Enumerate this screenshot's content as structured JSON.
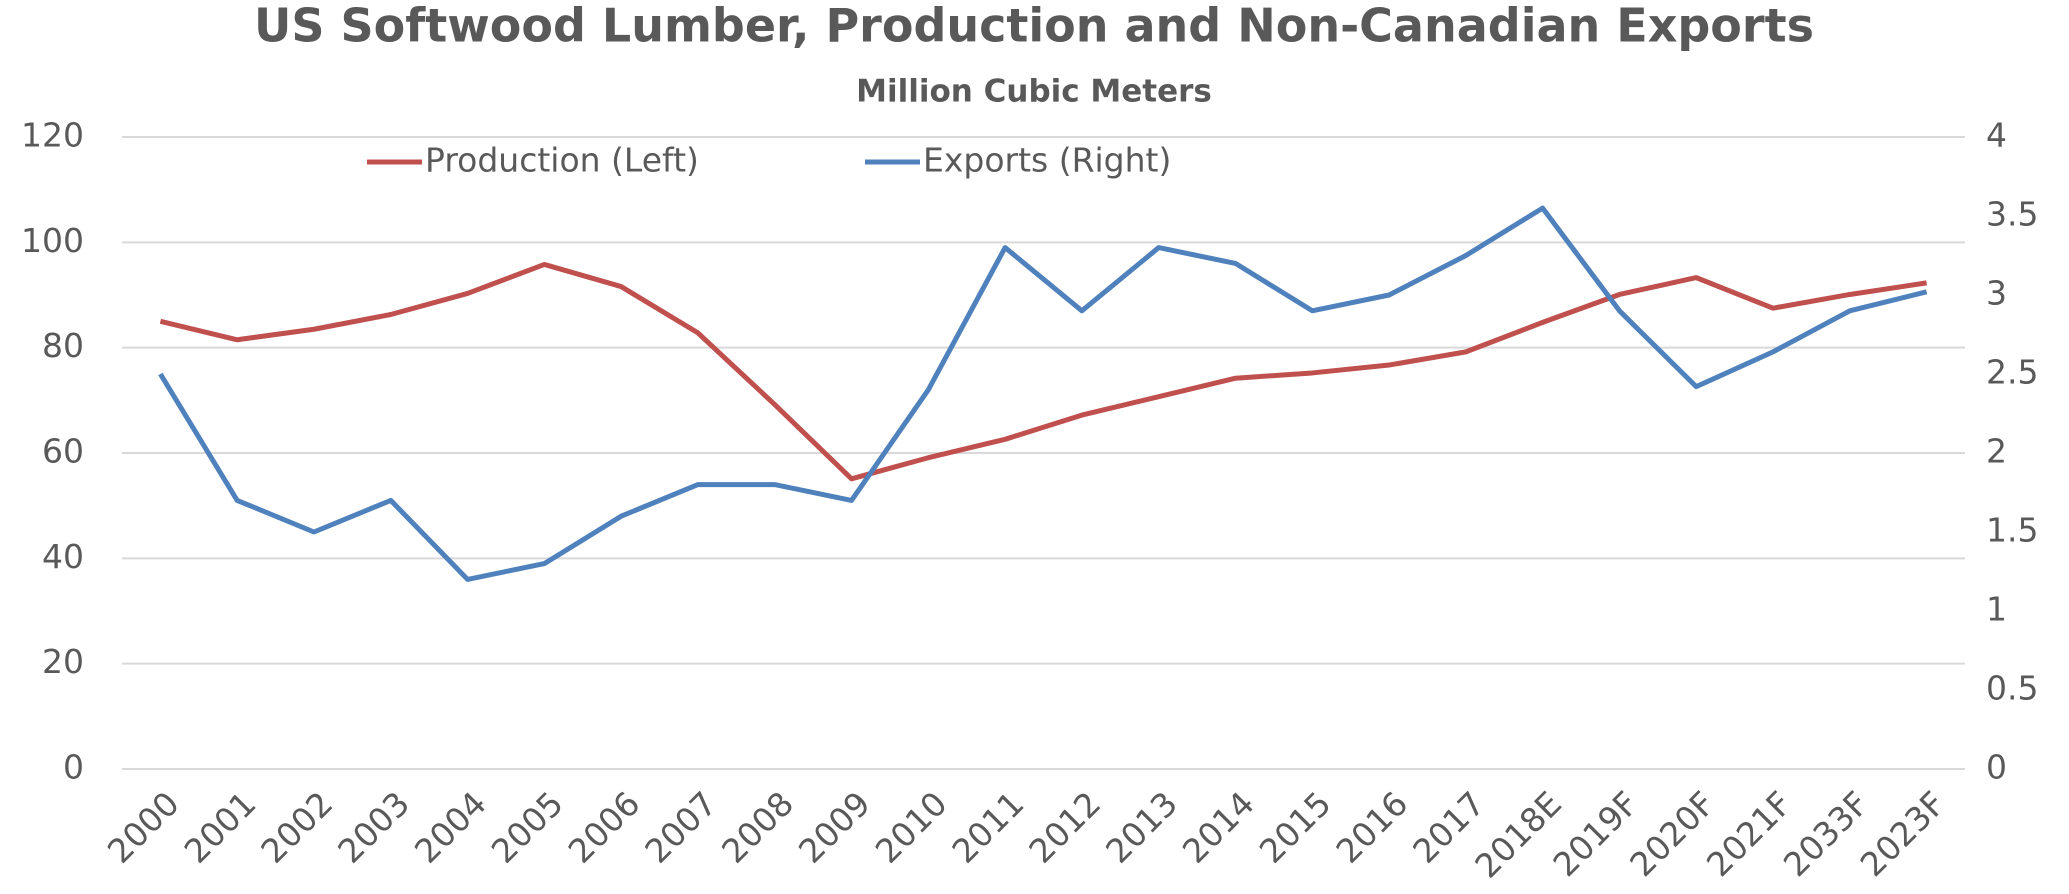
{
  "chart_data": {
    "type": "line",
    "title": "US Softwood Lumber, Production and Non-Canadian Exports",
    "subtitle": "Million Cubic Meters",
    "categories": [
      "2000",
      "2001",
      "2002",
      "2003",
      "2004",
      "2005",
      "2006",
      "2007",
      "2008",
      "2009",
      "2010",
      "2011",
      "2012",
      "2013",
      "2014",
      "2015",
      "2016",
      "2017",
      "2018E",
      "2019F",
      "2020F",
      "2021F",
      "2033F",
      "2023F"
    ],
    "series": [
      {
        "name": "Production (Left)",
        "color": "#c0504d",
        "values": [
          85,
          81.5,
          83.5,
          86.3,
          90.3,
          95.8,
          91.6,
          82.8,
          69.2,
          55.1,
          59.1,
          62.6,
          67.2,
          70.7,
          74.2,
          75.2,
          76.7,
          79.2,
          84.8,
          90.1,
          93.3,
          87.5,
          90.1,
          92.3
        ]
      },
      {
        "name": "Exports (Right)",
        "color": "#4f81bd",
        "axis": "y2",
        "values": [
          2.5,
          1.7,
          1.5,
          1.7,
          1.2,
          1.3,
          1.6,
          1.8,
          1.8,
          1.7,
          2.4,
          3.3,
          2.9,
          3.3,
          3.2,
          2.9,
          3.0,
          3.25,
          3.55,
          2.9,
          2.42,
          2.64,
          2.9,
          3.02
        ]
      }
    ],
    "ylim": [
      0,
      120
    ],
    "yticks": [
      0,
      20,
      40,
      60,
      80,
      100,
      120
    ],
    "y2lim": [
      0,
      4
    ],
    "y2ticks": [
      0,
      0.5,
      1,
      1.5,
      2,
      2.5,
      3,
      3.5,
      4
    ],
    "grid": true,
    "legend": "top"
  }
}
